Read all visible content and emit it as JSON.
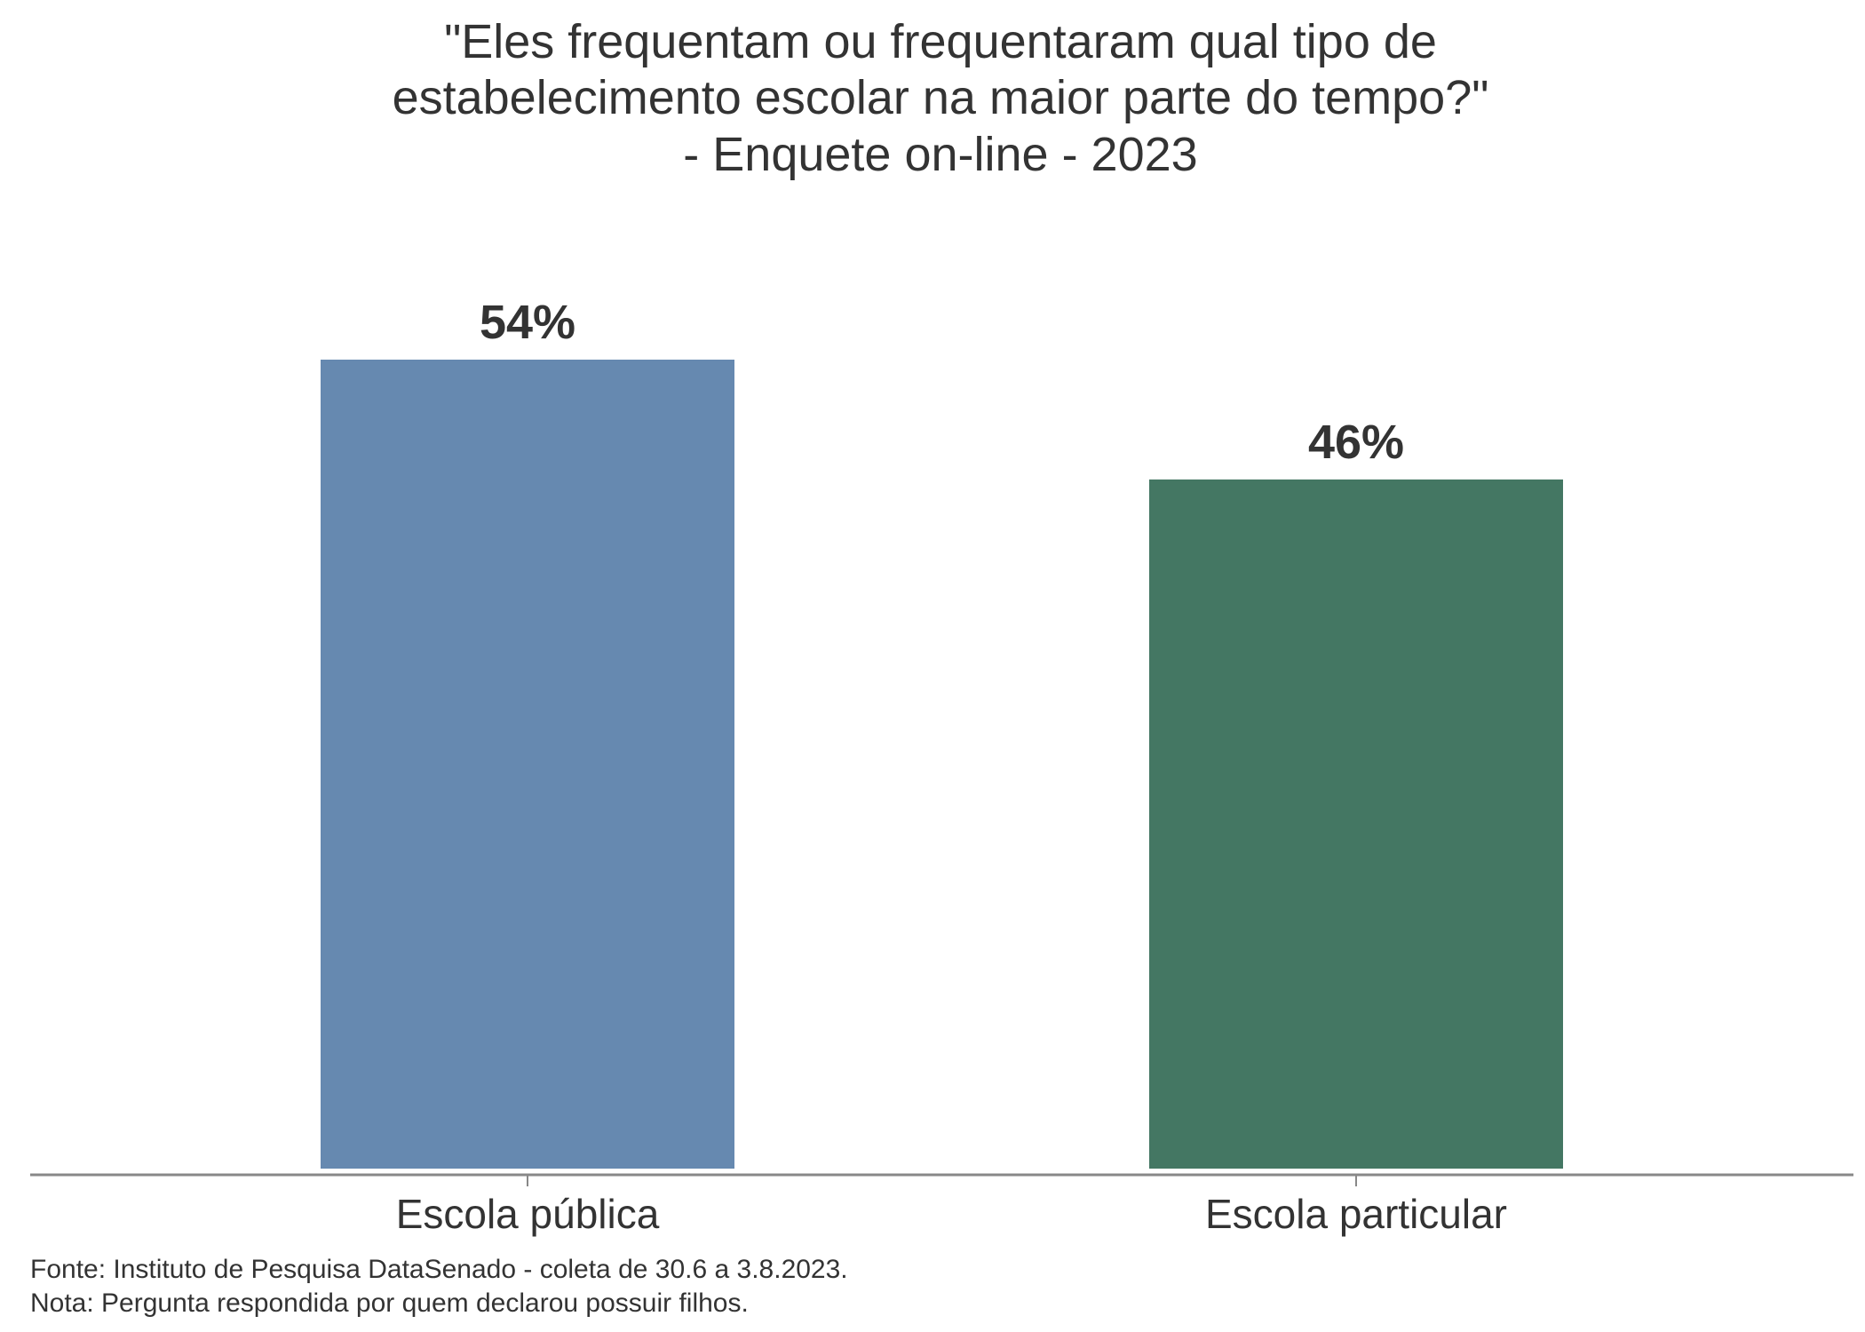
{
  "chart_data": {
    "type": "bar",
    "title": [
      "\"Eles frequentam ou frequentaram qual tipo de",
      "estabelecimento escolar na maior parte do tempo?\"",
      "- Enquete on-line - 2023"
    ],
    "categories": [
      "Escola pública",
      "Escola particular"
    ],
    "values": [
      54,
      46
    ],
    "data_labels": [
      "54%",
      "46%"
    ],
    "colors": [
      "#6689b0",
      "#447763"
    ],
    "ylim": [
      0,
      54
    ],
    "grid": false,
    "footer": [
      "Fonte: Instituto de Pesquisa DataSenado - coleta de 30.6 a 3.8.2023.",
      "Nota: Pergunta respondida por quem declarou possuir filhos."
    ]
  }
}
